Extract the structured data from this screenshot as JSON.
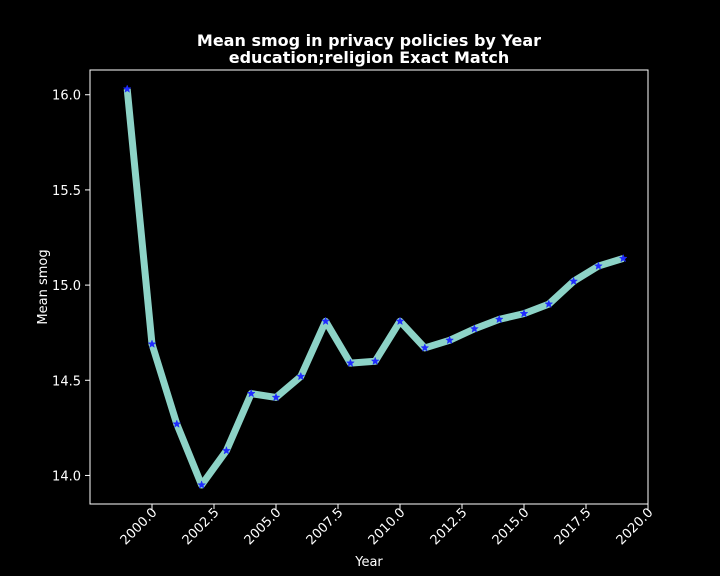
{
  "chart_data": {
    "type": "line",
    "title": "Mean smog in privacy policies by Year",
    "subtitle": "education;religion Exact Match",
    "xlabel": "Year",
    "ylabel": "Mean smog",
    "xlim": [
      1997.5,
      2020.0
    ],
    "ylim": [
      13.85,
      16.13
    ],
    "x_ticks": [
      2000.0,
      2002.5,
      2005.0,
      2007.5,
      2010.0,
      2012.5,
      2015.0,
      2017.5,
      2020.0
    ],
    "x_tick_labels": [
      "2000.0",
      "2002.5",
      "2005.0",
      "2007.5",
      "2010.0",
      "2012.5",
      "2015.0",
      "2017.5",
      "2020.0"
    ],
    "y_ticks": [
      14.0,
      14.5,
      15.0,
      15.5,
      16.0
    ],
    "y_tick_labels": [
      "14.0",
      "14.5",
      "15.0",
      "15.5",
      "16.0"
    ],
    "grid": false,
    "series": [
      {
        "x": [
          1999,
          2000,
          2001,
          2002,
          2003,
          2004,
          2005,
          2006,
          2007,
          2008,
          2009,
          2010,
          2011,
          2012,
          2013,
          2014,
          2015,
          2016,
          2017,
          2018,
          2019
        ],
        "values": [
          16.03,
          14.69,
          14.27,
          13.95,
          14.13,
          14.43,
          14.41,
          14.52,
          14.81,
          14.59,
          14.6,
          14.81,
          14.67,
          14.71,
          14.77,
          14.82,
          14.85,
          14.9,
          15.02,
          15.1,
          15.14
        ],
        "line_color": "#8dd3c7",
        "marker_color": "#1f2bff",
        "marker": "star"
      }
    ]
  }
}
